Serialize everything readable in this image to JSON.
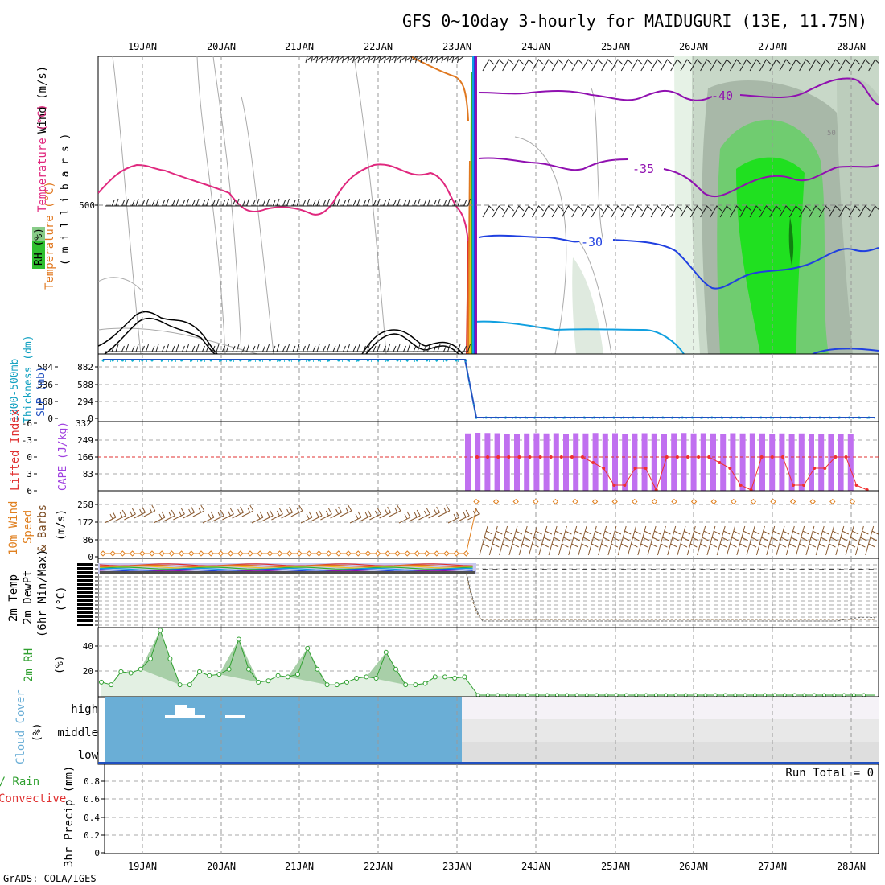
{
  "title": "GFS 0~10day 3-hourly for MAIDUGURI (13E, 11.75N)",
  "credit": "GrADS: COLA/IGES",
  "dates": [
    "19JAN",
    "20JAN",
    "21JAN",
    "22JAN",
    "23JAN",
    "24JAN",
    "25JAN",
    "26JAN",
    "27JAN",
    "28JAN"
  ],
  "panels": {
    "upper": {
      "label_wind": "Wind (m/s)",
      "label_temp": "Temperature (°C)",
      "label_mb": "( m i l l i b a r s )",
      "label_rh": "RH (%)",
      "level_500": "500",
      "contours": {
        "c40": "-40",
        "c35": "-35",
        "c30": "-30",
        "c50": "50"
      }
    },
    "thickness": {
      "label_a": "1000-500mb",
      "label_b": "Thickness (dm)",
      "label_c": "SLP (mb)",
      "left_ticks": [
        "504",
        "336",
        "168",
        "0"
      ],
      "right_ticks": [
        "882",
        "588",
        "294",
        "0"
      ],
      "bottom_tick": "332"
    },
    "cape": {
      "label_li": "Lifted Index",
      "label_cape": "CAPE (J/kg)",
      "left_ticks": [
        "-6",
        "-3",
        "0",
        "3",
        "6"
      ],
      "right_ticks": [
        "249",
        "166",
        "83"
      ]
    },
    "wind10": {
      "label_a": "10m Wind",
      "label_b": "Speed",
      "label_c": "& Barbs",
      "label_unit": "(m/s)",
      "ticks": [
        "258",
        "172",
        "86",
        "0"
      ]
    },
    "temp2m": {
      "label_a": "2m Temp",
      "label_b": "2m DewPt",
      "label_c": "(6hr Min/Max)",
      "label_unit": "(°C)"
    },
    "rh2m": {
      "label": "2m RH",
      "label_unit": "(%)",
      "ticks": [
        "40",
        "20"
      ]
    },
    "cloud": {
      "label": "Cloud Cover",
      "label_unit": "(%)",
      "levels": [
        "high",
        "middle",
        "low"
      ]
    },
    "precip": {
      "label_a": "Total / Rain",
      "label_b": "Convective",
      "label_c": "3hr Precip (mm)",
      "run_total": "Run Total = 0",
      "ticks": [
        "0.8",
        "0.6",
        "0.4",
        "0.2",
        "0"
      ]
    }
  },
  "colors": {
    "pink": "#e0287e",
    "purple": "#9010b0",
    "blue": "#2040e0",
    "cyan": "#10a0e0",
    "orange": "#e07820",
    "green": "#30b030",
    "cloud_blue": "#6aaed6",
    "bar_purple": "#c070f0",
    "li_red": "#f03030"
  },
  "chart_data": {
    "type": "meteogram",
    "x_start": "18JAN 12Z",
    "x_end": "28JAN 06Z",
    "step_hours": 3,
    "thickness_dm": [
      {
        "x": 0,
        "y": 504
      },
      {
        "x": 3,
        "y": 504
      },
      {
        "x": 4,
        "y": 500
      },
      {
        "x": 4.1,
        "y": 0
      },
      {
        "x": 10,
        "y": 0
      }
    ],
    "slp_mb_note": "SLP near 882 until 23JAN then drops to 0",
    "lifted_index": [
      0,
      0,
      0,
      0,
      0,
      0,
      0,
      0,
      0,
      0,
      0,
      1,
      2,
      5,
      5,
      2,
      2,
      6,
      0,
      0,
      0,
      0,
      0,
      1,
      2,
      5,
      6,
      0,
      0,
      0,
      5,
      5,
      2,
      2,
      0,
      0,
      5,
      6
    ],
    "cape_bars_after_23jan": [
      275,
      278,
      277,
      276,
      274,
      272,
      275,
      276,
      275,
      276,
      274,
      276,
      275,
      277,
      275,
      276,
      274,
      275,
      276,
      275,
      274,
      276,
      277,
      275,
      276,
      275,
      274,
      276,
      275,
      276,
      275,
      274,
      275,
      273,
      275,
      274,
      273,
      274,
      272,
      273
    ],
    "wind10_speed_before": 16,
    "wind10_speed_after": 240,
    "rh2m_before": [
      10,
      8,
      18,
      17,
      20,
      28,
      50,
      28,
      8,
      8,
      18,
      15,
      16,
      20,
      43,
      20,
      10,
      11,
      15,
      14,
      16,
      36,
      20,
      8,
      8,
      10,
      13,
      14,
      13,
      33,
      20,
      8,
      8,
      9,
      14,
      14,
      13,
      14
    ],
    "rh2m_after": 0,
    "cloud_cover": {
      "high_before": 100,
      "middle_before": 100,
      "low_before": 100,
      "high_after": 100,
      "middle_after": 100,
      "low_after": 100
    },
    "precip_3hr_mm": 0,
    "precip_ylim": [
      0,
      1
    ]
  }
}
